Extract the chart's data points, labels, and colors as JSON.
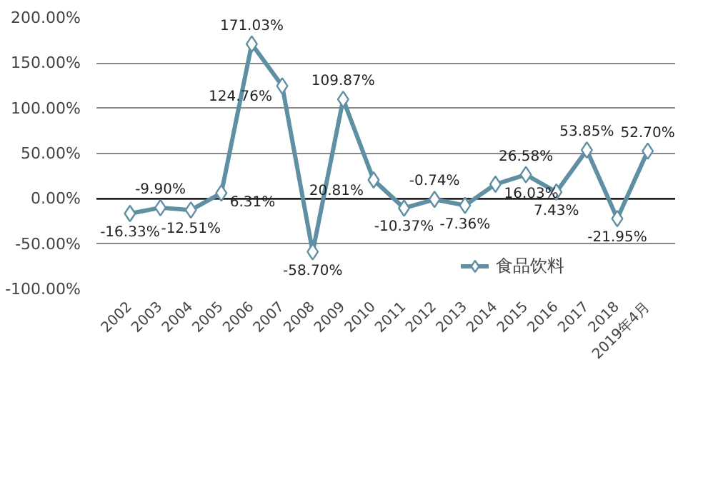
{
  "chart_data": {
    "type": "line",
    "categories": [
      "2002",
      "2003",
      "2004",
      "2005",
      "2006",
      "2007",
      "2008",
      "2009",
      "2010",
      "2011",
      "2012",
      "2013",
      "2014",
      "2015",
      "2016",
      "2017",
      "2018",
      "2019年4月"
    ],
    "series": [
      {
        "name": "食品饮料",
        "color": "#5f8fa3",
        "values": [
          -16.33,
          -9.9,
          -12.51,
          6.31,
          171.03,
          124.76,
          -58.7,
          109.87,
          20.81,
          -10.37,
          -0.74,
          -7.36,
          16.03,
          26.58,
          7.43,
          53.85,
          -21.95,
          52.7
        ],
        "value_labels": [
          "-16.33%",
          "-9.90%",
          "-12.51%",
          "6.31%",
          "171.03%",
          "124.76%",
          "-58.70%",
          "109.87%",
          "20.81%",
          "-10.37%",
          "-0.74%",
          "-7.36%",
          "16.03%",
          "26.58%",
          "7.43%",
          "53.85%",
          "-21.95%",
          "52.70%"
        ]
      }
    ],
    "ylim": [
      -100,
      200
    ],
    "yticks": [
      {
        "value": -100,
        "label": "-100.00%"
      },
      {
        "value": -50,
        "label": "-50.00%"
      },
      {
        "value": 0,
        "label": "0.00%"
      },
      {
        "value": 50,
        "label": "50.00%"
      },
      {
        "value": 100,
        "label": "100.00%"
      },
      {
        "value": 150,
        "label": "150.00%"
      },
      {
        "value": 200,
        "label": "200.00%"
      }
    ],
    "grid": "y",
    "legend": "bottom",
    "marker": "diamond",
    "line_style": "solid"
  }
}
